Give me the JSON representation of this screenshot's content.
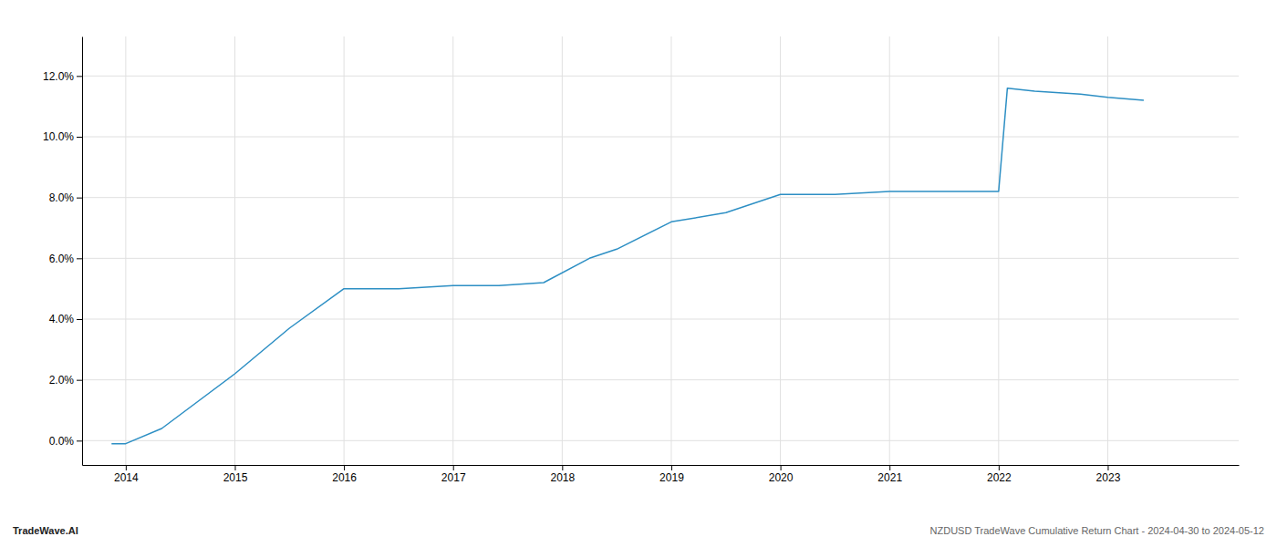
{
  "chart_data": {
    "type": "line",
    "x": [
      2013.87,
      2014.0,
      2014.33,
      2015.0,
      2015.5,
      2016.0,
      2016.5,
      2017.0,
      2017.42,
      2017.83,
      2018.25,
      2018.5,
      2019.0,
      2019.5,
      2020.0,
      2020.25,
      2020.5,
      2021.0,
      2021.33,
      2021.67,
      2022.0,
      2022.08,
      2022.33,
      2022.75,
      2023.0,
      2023.33
    ],
    "values": [
      -0.001,
      -0.001,
      0.004,
      0.022,
      0.037,
      0.05,
      0.05,
      0.051,
      0.051,
      0.052,
      0.06,
      0.063,
      0.072,
      0.075,
      0.081,
      0.081,
      0.081,
      0.082,
      0.082,
      0.082,
      0.082,
      0.116,
      0.115,
      0.114,
      0.113,
      0.112
    ],
    "color": "#2d8fc4",
    "xlim": [
      2013.6,
      2024.2
    ],
    "xticks": [
      2014,
      2015,
      2016,
      2017,
      2018,
      2019,
      2020,
      2021,
      2022,
      2023
    ],
    "ylim": [
      -0.008,
      0.133
    ],
    "yticks": [
      {
        "value": 0.0,
        "label": "0.0%"
      },
      {
        "value": 0.02,
        "label": "2.0%"
      },
      {
        "value": 0.04,
        "label": "4.0%"
      },
      {
        "value": 0.06,
        "label": "6.0%"
      },
      {
        "value": 0.08,
        "label": "8.0%"
      },
      {
        "value": 0.1,
        "label": "10.0%"
      },
      {
        "value": 0.12,
        "label": "12.0%"
      }
    ],
    "grid": true,
    "annotations": [
      "TradeWave.AI",
      "NZDUSD TradeWave Cumulative Return Chart - 2024-04-30 to 2024-05-12"
    ]
  }
}
